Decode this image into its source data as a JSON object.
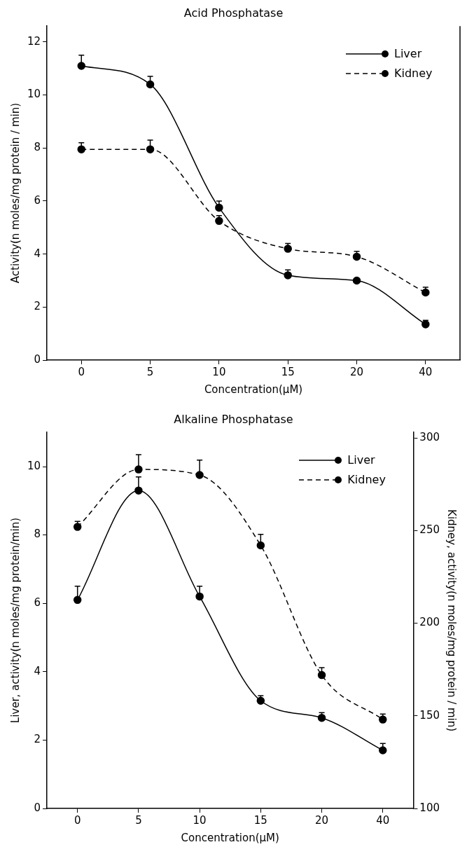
{
  "chart_data": [
    {
      "type": "line",
      "title": "Acid Phosphatase",
      "xlabel": "Concentration(μM)",
      "ylabel": "Activity(n moles/mg protein / min)",
      "categories": [
        "0",
        "5",
        "10",
        "15",
        "20",
        "40"
      ],
      "ylim": [
        0,
        12.6
      ],
      "yticks": [
        0,
        2,
        4,
        6,
        8,
        10,
        12
      ],
      "grid": false,
      "legend": "top right",
      "marker": "circle",
      "series": [
        {
          "name": "Liver",
          "color": "#000000",
          "line_style": "solid",
          "values": [
            11.1,
            10.4,
            5.75,
            3.2,
            3.0,
            1.35
          ],
          "errors": [
            [
              11.1,
              11.5
            ],
            [
              10.4,
              10.7
            ],
            [
              5.75,
              6.0
            ],
            [
              3.2,
              3.4
            ],
            null,
            [
              1.35,
              1.5
            ]
          ]
        },
        {
          "name": "Kidney",
          "color": "#000000",
          "line_style": "dashed",
          "values": [
            7.95,
            7.95,
            5.25,
            4.2,
            3.9,
            2.55
          ],
          "errors": [
            [
              7.95,
              8.2
            ],
            [
              7.95,
              8.3
            ],
            [
              5.25,
              5.45
            ],
            [
              4.2,
              4.4
            ],
            [
              3.9,
              4.1
            ],
            [
              2.55,
              2.75
            ]
          ]
        }
      ]
    },
    {
      "type": "line",
      "title": "Alkaline Phosphatase",
      "xlabel": "Concentration(μM)",
      "ylabel": "Liver, activity(n moles/mg protein/min)",
      "y2label": "Kidney, activity(n moles/mg protein / min)",
      "categories": [
        "0",
        "5",
        "10",
        "15",
        "20",
        "40"
      ],
      "ylim": [
        0,
        11
      ],
      "yticks": [
        0,
        2,
        4,
        6,
        8,
        10
      ],
      "y2lim": [
        100,
        303
      ],
      "y2ticks": [
        100,
        150,
        200,
        250,
        300
      ],
      "grid": false,
      "legend": "top right",
      "marker": "circle",
      "series": [
        {
          "name": "Liver",
          "color": "#000000",
          "line_style": "solid",
          "values": [
            6.1,
            9.3,
            6.2,
            3.15,
            2.65,
            1.7
          ],
          "errors": [
            [
              6.1,
              6.5
            ],
            [
              9.3,
              9.7
            ],
            [
              6.2,
              6.5
            ],
            [
              3.15,
              3.3
            ],
            [
              2.65,
              2.8
            ],
            [
              1.7,
              1.9
            ]
          ]
        },
        {
          "name": "Kidney",
          "color": "#000000",
          "line_style": "dashed",
          "axis": "y2",
          "values": [
            252,
            283,
            280,
            242,
            172,
            148
          ],
          "errors": [
            [
              252,
              255
            ],
            [
              283,
              291
            ],
            [
              280,
              288
            ],
            [
              242,
              248
            ],
            [
              172,
              176
            ],
            [
              148,
              151
            ]
          ]
        }
      ]
    }
  ]
}
